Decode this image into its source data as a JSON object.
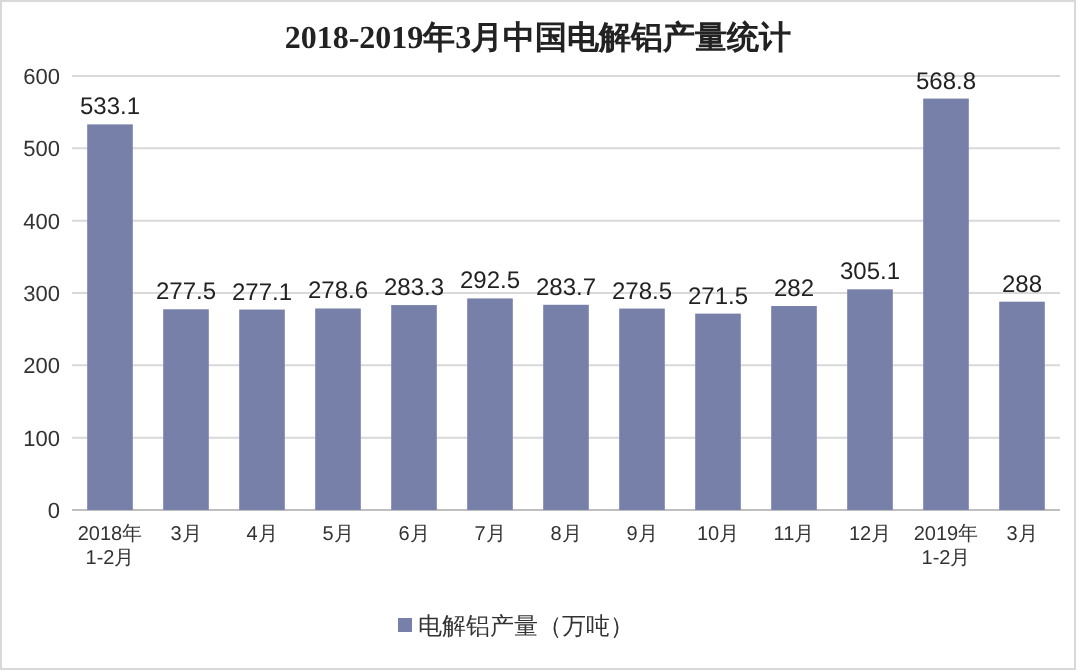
{
  "chart_data": {
    "type": "bar",
    "title": "2018-2019年3月中国电解铝产量统计",
    "categories": [
      "2018年\n1-2月",
      "3月",
      "4月",
      "5月",
      "6月",
      "7月",
      "8月",
      "9月",
      "10月",
      "11月",
      "12月",
      "2019年\n1-2月",
      "3月"
    ],
    "series": [
      {
        "name": "电解铝产量（万吨）",
        "color": "#7680a8",
        "values": [
          533.1,
          277.5,
          277.1,
          278.6,
          283.3,
          292.5,
          283.7,
          278.5,
          271.5,
          282,
          305.1,
          568.8,
          288
        ]
      }
    ],
    "ylim": [
      0,
      600
    ],
    "yticks": [
      0,
      100,
      200,
      300,
      400,
      500,
      600
    ],
    "grid": "y",
    "legend": "bottom",
    "data_labels": true
  }
}
